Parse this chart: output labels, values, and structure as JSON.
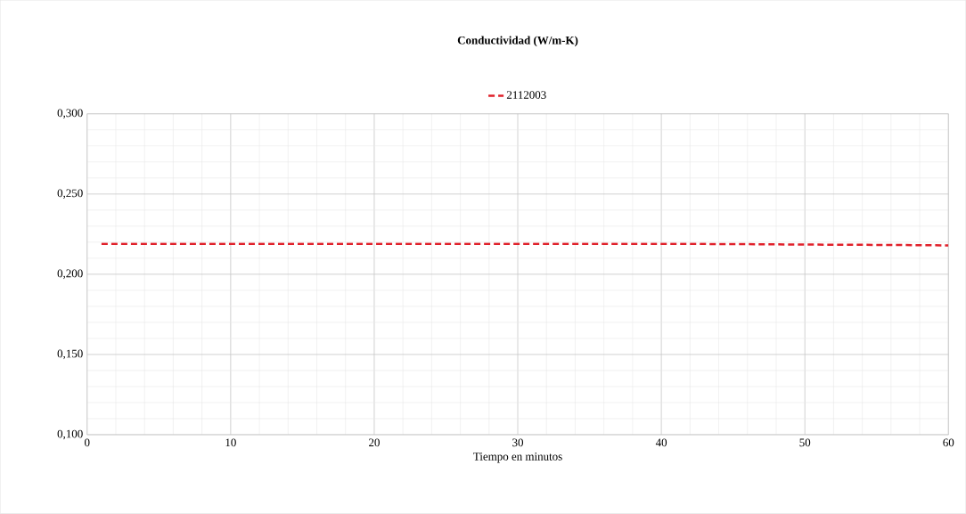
{
  "chart_data": {
    "type": "line",
    "title": "Conductividad (W/m-K)",
    "xlabel": "Tiempo en minutos",
    "series": [
      {
        "name": "2112003",
        "color": "#e0202a",
        "x": [
          1,
          10,
          20,
          30,
          40,
          45,
          50,
          55,
          60
        ],
        "values": [
          0.219,
          0.219,
          0.219,
          0.219,
          0.219,
          0.2188,
          0.2185,
          0.2183,
          0.218
        ]
      }
    ],
    "xlim": [
      0,
      60
    ],
    "xticks": [
      0,
      10,
      20,
      30,
      40,
      50,
      60
    ],
    "ylim": [
      0.1,
      0.3
    ],
    "yticks": [
      {
        "value": 0.1,
        "label": "0,100"
      },
      {
        "value": 0.15,
        "label": "0,150"
      },
      {
        "value": 0.2,
        "label": "0,200"
      },
      {
        "value": 0.25,
        "label": "0,250"
      },
      {
        "value": 0.3,
        "label": "0,300"
      }
    ],
    "grid": true,
    "legend": "top",
    "line_style": "dashed",
    "marker": "none"
  }
}
